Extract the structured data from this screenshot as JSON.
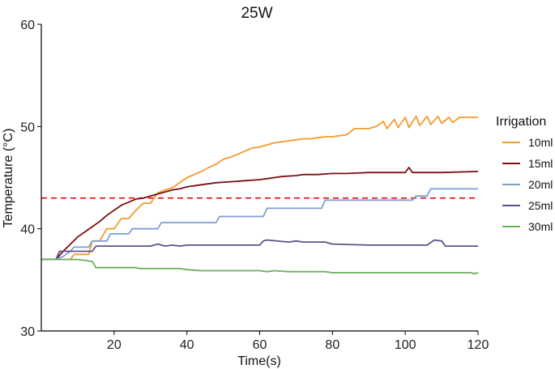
{
  "chart_data": {
    "type": "line",
    "title": "25W",
    "xlabel": "Time(s)",
    "ylabel": "Temperature (°C)",
    "xlim": [
      0,
      120
    ],
    "ylim": [
      30,
      60
    ],
    "xticks": [
      20,
      40,
      60,
      80,
      100,
      120
    ],
    "yticks": [
      30,
      40,
      50,
      60
    ],
    "grid": false,
    "legend": {
      "title": "Irrigation",
      "position": "right"
    },
    "reference_line": {
      "y": 43,
      "color": "#e41a1c",
      "style": "dashed"
    },
    "series": [
      {
        "name": "10ml",
        "color": "#f39a2b",
        "x": [
          0,
          4,
          8,
          9,
          13,
          14,
          16,
          18,
          20,
          22,
          24,
          26,
          28,
          30,
          32,
          34,
          36,
          38,
          40,
          42,
          44,
          46,
          48,
          50,
          52,
          54,
          56,
          58,
          60,
          62,
          64,
          66,
          68,
          70,
          72,
          74,
          76,
          78,
          80,
          84,
          86,
          90,
          92,
          94,
          95,
          97,
          98,
          100,
          101,
          103,
          104,
          106,
          107,
          109,
          110,
          112,
          113,
          115,
          116,
          118,
          120
        ],
        "y": [
          37,
          37,
          37,
          37.5,
          37.5,
          38.8,
          38.8,
          40,
          40,
          41,
          41,
          41.8,
          42.5,
          42.5,
          43.5,
          43.8,
          44,
          44.5,
          45,
          45.3,
          45.6,
          46,
          46.3,
          46.8,
          47,
          47.3,
          47.6,
          47.9,
          48,
          48.2,
          48.4,
          48.5,
          48.6,
          48.7,
          48.8,
          48.8,
          48.9,
          49,
          49,
          49.2,
          49.8,
          49.8,
          50,
          50.5,
          49.8,
          50.7,
          49.9,
          50.9,
          49.9,
          51,
          50.1,
          51,
          50.2,
          51,
          50.3,
          50.9,
          50.4,
          50.9,
          50.9,
          50.9,
          50.9
        ]
      },
      {
        "name": "15ml",
        "color": "#7b1012",
        "x": [
          0,
          4,
          6,
          8,
          10,
          12,
          14,
          16,
          18,
          20,
          22,
          24,
          26,
          28,
          30,
          32,
          34,
          36,
          38,
          40,
          44,
          48,
          52,
          56,
          60,
          62,
          64,
          66,
          70,
          72,
          74,
          76,
          80,
          84,
          90,
          96,
          100,
          101,
          102,
          104,
          110,
          120
        ],
        "y": [
          37,
          37,
          37.8,
          38.5,
          39.2,
          39.7,
          40.2,
          40.7,
          41.3,
          41.8,
          42.3,
          42.6,
          42.9,
          43,
          43.2,
          43.4,
          43.6,
          43.8,
          43.9,
          44.1,
          44.3,
          44.5,
          44.6,
          44.7,
          44.8,
          44.9,
          45,
          45.1,
          45.2,
          45.3,
          45.3,
          45.3,
          45.4,
          45.4,
          45.5,
          45.5,
          45.5,
          46,
          45.5,
          45.5,
          45.5,
          45.6
        ]
      },
      {
        "name": "20ml",
        "color": "#7f9fd0",
        "x": [
          0,
          4,
          6,
          8,
          9,
          13,
          14,
          18,
          19,
          24,
          25,
          32,
          33,
          48,
          49,
          61,
          62,
          77,
          78,
          102,
          103,
          106,
          107,
          120
        ],
        "y": [
          37,
          37,
          37.3,
          37.8,
          38.2,
          38.2,
          38.8,
          38.8,
          39.5,
          39.5,
          40,
          40,
          40.6,
          40.6,
          41.2,
          41.2,
          42,
          42,
          42.8,
          42.8,
          43.2,
          43.2,
          43.9,
          43.9
        ]
      },
      {
        "name": "25ml",
        "color": "#5a548c",
        "x": [
          0,
          4,
          5,
          14,
          15,
          30,
          32,
          34,
          36,
          38,
          40,
          60,
          61,
          62,
          68,
          70,
          72,
          78,
          80,
          90,
          100,
          106,
          108,
          110,
          111,
          120
        ],
        "y": [
          37,
          37,
          37.8,
          37.8,
          38.3,
          38.3,
          38.5,
          38.3,
          38.4,
          38.3,
          38.4,
          38.4,
          38.8,
          38.9,
          38.7,
          38.8,
          38.7,
          38.7,
          38.5,
          38.4,
          38.4,
          38.4,
          38.9,
          38.8,
          38.3,
          38.3
        ]
      },
      {
        "name": "30ml",
        "color": "#6aaf5c",
        "x": [
          0,
          10,
          14,
          15,
          26,
          27,
          38,
          40,
          44,
          60,
          62,
          64,
          68,
          70,
          78,
          80,
          118,
          119,
          120
        ],
        "y": [
          37,
          37,
          36.8,
          36.2,
          36.2,
          36.1,
          36.1,
          36.0,
          35.9,
          35.9,
          35.8,
          35.9,
          35.8,
          35.8,
          35.8,
          35.7,
          35.7,
          35.6,
          35.7
        ]
      }
    ]
  }
}
